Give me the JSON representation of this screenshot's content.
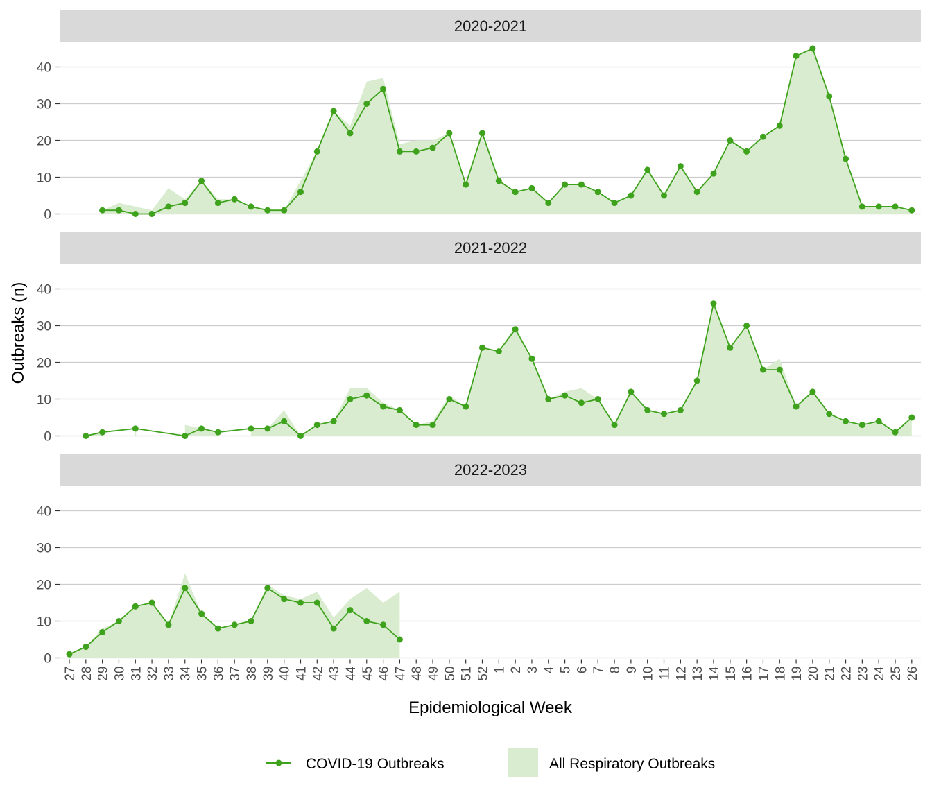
{
  "chart_data": {
    "type": "line",
    "xlabel": "Epidemiological Week",
    "ylabel": "Outbreaks (n)",
    "ylim": [
      0,
      45
    ],
    "yticks": [
      0,
      10,
      20,
      30,
      40
    ],
    "grid": true,
    "legend_position": "bottom",
    "weeks": [
      "27",
      "28",
      "29",
      "30",
      "31",
      "32",
      "33",
      "34",
      "35",
      "36",
      "37",
      "38",
      "39",
      "40",
      "41",
      "42",
      "43",
      "44",
      "45",
      "46",
      "47",
      "48",
      "49",
      "50",
      "51",
      "52",
      "1",
      "2",
      "3",
      "4",
      "5",
      "6",
      "7",
      "8",
      "9",
      "10",
      "11",
      "12",
      "13",
      "14",
      "15",
      "16",
      "17",
      "18",
      "19",
      "20",
      "21",
      "22",
      "23",
      "24",
      "25",
      "26"
    ],
    "legend": [
      {
        "key": "covid",
        "label": "COVID-19 Outbreaks"
      },
      {
        "key": "all",
        "label": "All Respiratory Outbreaks"
      }
    ],
    "colors": {
      "covid": "#3fa21c",
      "all_fill": "#d9ecd0",
      "strip_bg": "#d9d9d9",
      "grid": "#cccccc",
      "tick": "#4d4d4d"
    },
    "panels": [
      {
        "season": "2020-2021",
        "all": [
          null,
          null,
          1,
          3,
          2,
          1,
          7,
          4,
          9,
          4,
          4,
          2,
          1,
          1,
          9,
          17,
          28,
          24,
          36,
          37,
          19,
          20,
          20,
          22,
          8,
          22,
          9,
          6,
          7,
          3,
          8,
          8,
          6,
          3,
          5,
          12,
          5,
          13,
          6,
          11,
          20,
          17,
          21,
          24,
          43,
          45,
          32,
          15,
          2,
          2,
          2,
          1
        ],
        "covid": [
          null,
          null,
          1,
          1,
          0,
          0,
          2,
          3,
          9,
          3,
          4,
          2,
          1,
          1,
          6,
          17,
          28,
          22,
          30,
          34,
          17,
          17,
          18,
          22,
          8,
          22,
          9,
          6,
          7,
          3,
          8,
          8,
          6,
          3,
          5,
          12,
          5,
          13,
          6,
          11,
          20,
          17,
          21,
          24,
          43,
          45,
          32,
          15,
          2,
          2,
          2,
          1
        ]
      },
      {
        "season": "2021-2022",
        "all": [
          null,
          0,
          1,
          null,
          2,
          null,
          null,
          3,
          2,
          1,
          null,
          2,
          2,
          7,
          0,
          3,
          4,
          13,
          13,
          9,
          7,
          3,
          4,
          11,
          8,
          24,
          23,
          30,
          21,
          10,
          12,
          13,
          10,
          3,
          12,
          7,
          6,
          7,
          15,
          36,
          24,
          30,
          18,
          21,
          8,
          12,
          6,
          4,
          3,
          4,
          1,
          5
        ],
        "covid": [
          null,
          0,
          1,
          null,
          2,
          null,
          null,
          0,
          2,
          1,
          null,
          2,
          2,
          4,
          0,
          3,
          4,
          10,
          11,
          8,
          7,
          3,
          3,
          10,
          8,
          24,
          23,
          29,
          21,
          10,
          11,
          9,
          10,
          3,
          12,
          7,
          6,
          7,
          15,
          36,
          24,
          30,
          18,
          18,
          8,
          12,
          6,
          4,
          3,
          4,
          1,
          5
        ]
      },
      {
        "season": "2022-2023",
        "all": [
          1,
          3,
          8,
          10,
          14,
          15,
          9,
          23,
          12,
          8,
          9,
          10,
          20,
          17,
          16,
          18,
          11,
          16,
          19,
          15,
          18,
          null,
          null,
          null,
          null,
          null,
          null,
          null,
          null,
          null,
          null,
          null,
          null,
          null,
          null,
          null,
          null,
          null,
          null,
          null,
          null,
          null,
          null,
          null,
          null,
          null,
          null,
          null,
          null,
          null,
          null,
          null
        ],
        "covid": [
          1,
          3,
          7,
          10,
          14,
          15,
          9,
          19,
          12,
          8,
          9,
          10,
          19,
          16,
          15,
          15,
          8,
          13,
          10,
          9,
          5,
          null,
          null,
          null,
          null,
          null,
          null,
          null,
          null,
          null,
          null,
          null,
          null,
          null,
          null,
          null,
          null,
          null,
          null,
          null,
          null,
          null,
          null,
          null,
          null,
          null,
          null,
          null,
          null,
          null,
          null,
          null
        ]
      }
    ]
  }
}
